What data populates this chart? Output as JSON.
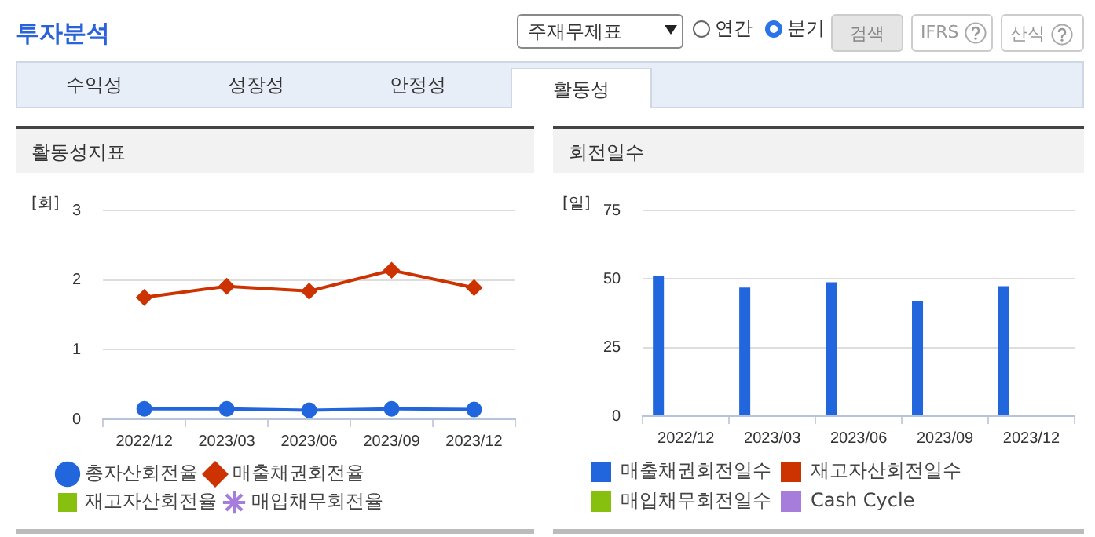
{
  "chart_data": [
    {
      "type": "other",
      "title": "투자분석",
      "annotations": [
        "주재무제표",
        "연간",
        "분기",
        "검색",
        "IFRS",
        "산식",
        "수익성",
        "성장성",
        "안정성",
        "활동성"
      ]
    },
    {
      "type": "line",
      "title": "활동성지표",
      "ylabel": "[회]",
      "categories": [
        "2022/12",
        "2023/03",
        "2023/06",
        "2023/09",
        "2023/12"
      ],
      "ylim": [
        0,
        3
      ],
      "yticks": [
        0,
        1,
        2,
        3
      ],
      "grid": "y",
      "legend": "bottom",
      "series": [
        {
          "name": "총자산회전율",
          "color": "#2166dd",
          "marker": "circle",
          "values": [
            0.15,
            0.15,
            0.13,
            0.15,
            0.14
          ]
        },
        {
          "name": "매출채권회전율",
          "color": "#cc3300",
          "marker": "diamond",
          "values": [
            1.75,
            1.91,
            1.84,
            2.14,
            1.89
          ]
        },
        {
          "name": "재고자산회전율",
          "color": "#88c00f",
          "marker": "square",
          "values": [
            null,
            null,
            null,
            null,
            null
          ]
        },
        {
          "name": "매입채무회전율",
          "color": "#a77ddb",
          "marker": "star",
          "values": [
            null,
            null,
            null,
            null,
            null
          ]
        }
      ]
    },
    {
      "type": "bar",
      "title": "회전일수",
      "ylabel": "[일]",
      "categories": [
        "2022/12",
        "2023/03",
        "2023/06",
        "2023/09",
        "2023/12"
      ],
      "ylim": [
        0,
        75
      ],
      "yticks": [
        0,
        25,
        50,
        75
      ],
      "grid": "y",
      "legend": "bottom",
      "series": [
        {
          "name": "매출채권회전일수",
          "color": "#2166dd",
          "values": [
            51.2,
            46.9,
            48.8,
            41.8,
            47.4
          ]
        },
        {
          "name": "재고자산회전일수",
          "color": "#cc3300",
          "values": [
            null,
            null,
            null,
            null,
            null
          ]
        },
        {
          "name": "매입채무회전일수",
          "color": "#88c00f",
          "values": [
            null,
            null,
            null,
            null,
            null
          ]
        },
        {
          "name": "Cash Cycle",
          "color": "#a77ddb",
          "values": [
            null,
            null,
            null,
            null,
            null
          ]
        }
      ]
    }
  ]
}
